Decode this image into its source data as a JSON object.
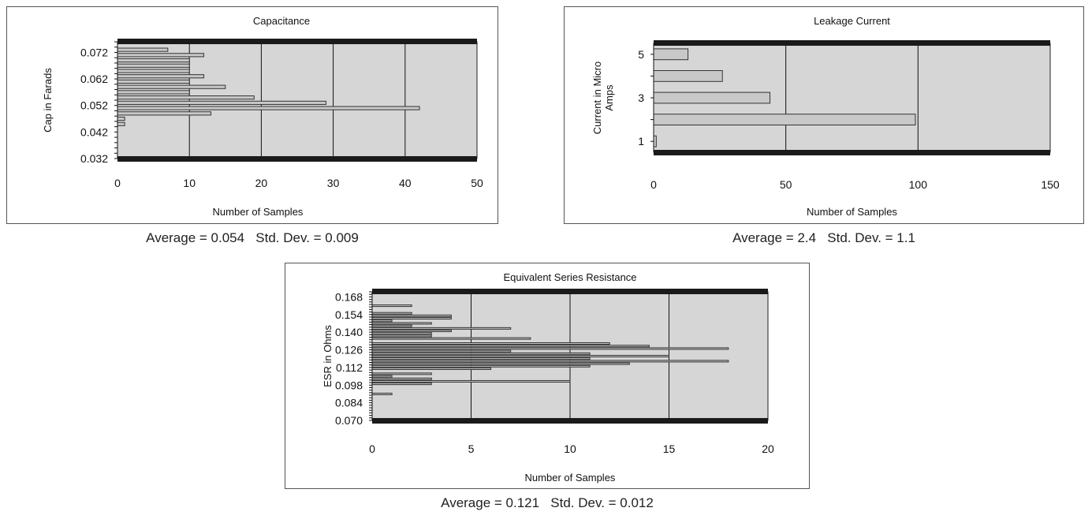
{
  "chart_data": [
    {
      "type": "bar",
      "orientation": "horizontal",
      "title": "Capacitance",
      "xlabel": "Number of Samples",
      "ylabel": "Cap in Farads",
      "xlim": [
        0,
        50
      ],
      "ylim": [
        0.032,
        0.076
      ],
      "x_ticks": [
        "0",
        "10",
        "20",
        "30",
        "40",
        "50"
      ],
      "y_ticks": [
        "0.072",
        "0.062",
        "0.052",
        "0.042",
        "0.032"
      ],
      "y_tick_values": [
        0.072,
        0.062,
        0.052,
        0.042,
        0.032
      ],
      "bin_width": 0.002,
      "bins": [
        0.073,
        0.071,
        0.069,
        0.067,
        0.065,
        0.063,
        0.061,
        0.059,
        0.057,
        0.055,
        0.053,
        0.051,
        0.049,
        0.047,
        0.045,
        0.043,
        0.041
      ],
      "values": [
        7,
        12,
        10,
        10,
        10,
        12,
        10,
        15,
        10,
        19,
        29,
        42,
        13,
        1,
        1,
        0,
        0
      ],
      "grid": true,
      "stats": {
        "average": "Average = 0.054",
        "stddev": "Std. Dev. = 0.009"
      }
    },
    {
      "type": "bar",
      "orientation": "horizontal",
      "title": "Leakage Current",
      "xlabel": "Number of Samples",
      "ylabel": "Current in Micro Amps",
      "ylabel_lines": [
        "Current in Micro",
        "Amps"
      ],
      "xlim": [
        0,
        150
      ],
      "ylim": [
        0.5,
        5.5
      ],
      "x_ticks": [
        "0",
        "50",
        "100",
        "150"
      ],
      "y_ticks": [
        "5",
        "3",
        "1"
      ],
      "y_tick_values": [
        5,
        3,
        1
      ],
      "bins": [
        5,
        4,
        3,
        2,
        1
      ],
      "values": [
        13,
        26,
        44,
        99,
        1
      ],
      "grid": true,
      "stats": {
        "average": "Average = 2.4",
        "stddev": "Std. Dev. = 1.1"
      }
    },
    {
      "type": "bar",
      "orientation": "horizontal",
      "title": "Equivalent Series Resistance",
      "xlabel": "Number of Samples",
      "ylabel": "ESR in Ohms",
      "xlim": [
        0,
        20
      ],
      "ylim": [
        0.07,
        0.172
      ],
      "x_ticks": [
        "0",
        "5",
        "10",
        "15",
        "20"
      ],
      "y_ticks": [
        "0.168",
        "0.154",
        "0.140",
        "0.126",
        "0.112",
        "0.098",
        "0.084",
        "0.070"
      ],
      "y_tick_values": [
        0.168,
        0.154,
        0.14,
        0.126,
        0.112,
        0.098,
        0.084,
        0.07
      ],
      "bin_width": 0.002,
      "bins": [
        0.161,
        0.159,
        0.157,
        0.155,
        0.153,
        0.151,
        0.149,
        0.147,
        0.145,
        0.143,
        0.141,
        0.139,
        0.137,
        0.135,
        0.133,
        0.131,
        0.129,
        0.127,
        0.125,
        0.123,
        0.121,
        0.119,
        0.117,
        0.115,
        0.113,
        0.111,
        0.109,
        0.107,
        0.105,
        0.103,
        0.101,
        0.099,
        0.097,
        0.095,
        0.093,
        0.091
      ],
      "values": [
        2,
        0,
        0,
        2,
        4,
        4,
        1,
        3,
        2,
        7,
        4,
        3,
        3,
        8,
        0,
        12,
        14,
        18,
        7,
        11,
        15,
        11,
        18,
        13,
        11,
        6,
        0,
        3,
        1,
        3,
        10,
        3,
        0,
        0,
        0,
        1
      ],
      "grid": true,
      "stats": {
        "average": "Average = 0.121",
        "stddev": "Std. Dev. = 0.012"
      }
    }
  ],
  "colors": {
    "plot_bg": "#d6d6d6",
    "bar_fill": "#c8c8c8",
    "bar_stroke": "#333333",
    "frame_band": "#1a1a1a",
    "grid": "#111111"
  }
}
